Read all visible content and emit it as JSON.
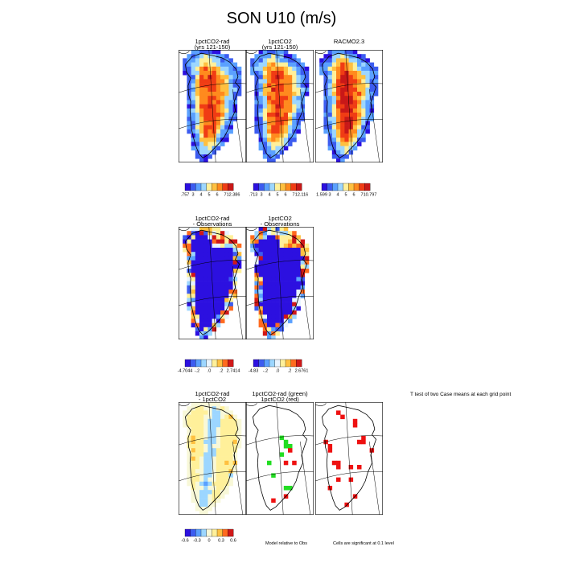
{
  "title": "SON U10 (m/s)",
  "rows": [
    {
      "panels": [
        {
          "title": "1pctCO2-rad\n(yrs 121-150)",
          "kind": "field",
          "palette": "wind",
          "intensity": 0.55
        },
        {
          "title": "1pctCO2\n(yrs 121-150)",
          "kind": "field",
          "palette": "wind",
          "intensity": 0.55
        },
        {
          "title": "RACMO2.3",
          "kind": "field",
          "palette": "wind",
          "intensity": 0.85
        }
      ],
      "colorbars": [
        {
          "ticks": [
            ".757",
            "3",
            "4",
            "5",
            "6",
            "7",
            "12.386"
          ]
        },
        {
          "ticks": [
            ".713",
            "3",
            "4",
            "5",
            "6",
            "7",
            "12.116"
          ]
        },
        {
          "ticks": [
            "1.599",
            "3",
            "4",
            "5",
            "6",
            "7",
            "10.797"
          ]
        }
      ]
    },
    {
      "panels": [
        {
          "title": "1pctCO2-rad\n- Observations",
          "kind": "field",
          "palette": "diffblue",
          "intensity": 0.1
        },
        {
          "title": "1pctCO2\n- Observations",
          "kind": "field",
          "palette": "diffblue",
          "intensity": 0.1
        }
      ],
      "colorbars": [
        {
          "ticks": [
            "-4.7044",
            "-.2",
            ".0",
            ".2",
            "2.7414"
          ]
        },
        {
          "ticks": [
            "-4.83",
            "-.2",
            ".0",
            ".2",
            "2.6761"
          ]
        }
      ]
    },
    {
      "panels": [
        {
          "title": "1pctCO2-rad\n- 1pctCO2",
          "kind": "field",
          "palette": "diffpale",
          "intensity": 0.5
        },
        {
          "title": "1pctCO2-rad (green)\n1pctCO2 (red)",
          "kind": "signif",
          "palette": "signif",
          "intensity": 0
        },
        {
          "title": "",
          "kind": "signif2",
          "palette": "signif",
          "intensity": 0
        }
      ],
      "colorbars": [
        {
          "ticks": [
            "-0.6",
            "-0.3",
            "0",
            "0.3",
            "0.6"
          ]
        }
      ],
      "header_note": "T test of two Case means at each grid point",
      "footer_left": "Model relative to Obs",
      "footer_right": "Cells are significant at 0.1 level"
    }
  ],
  "colors": {
    "wind": [
      "#2c10e0",
      "#3c5cf0",
      "#5aa0ff",
      "#9cd6ff",
      "#fff09a",
      "#ffc040",
      "#ff8a1e",
      "#f03c14",
      "#c81818"
    ],
    "diff": [
      "#2c10e0",
      "#3c5cf0",
      "#5aa0ff",
      "#9cd6ff",
      "#e8f4ff",
      "#fff09a",
      "#ffc040",
      "#ff6a1e",
      "#d01818"
    ],
    "pale": [
      "#2c10e0",
      "#3c5cf0",
      "#5aa0ff",
      "#9cd6ff",
      "#f8f8d8",
      "#fff09a",
      "#ffc040",
      "#ff6a1e",
      "#d01818"
    ],
    "green": "#22dd22",
    "red": "#ee1111"
  }
}
